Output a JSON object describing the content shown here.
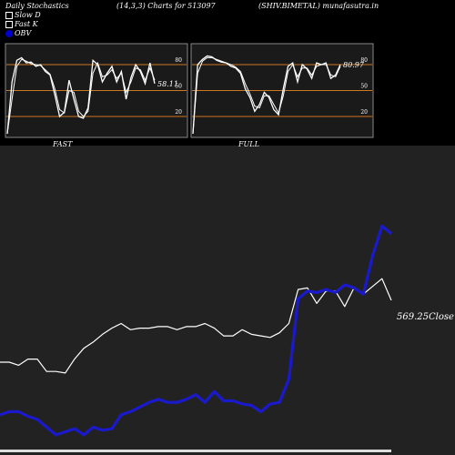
{
  "header": {
    "left": "Daily Stochastics",
    "middle": "(14,3,3) Charts for 513097",
    "right": "(SHIV.BIMETAL) munafasutra.in"
  },
  "legend": [
    {
      "label": "Slow  D",
      "color": "#ffffff"
    },
    {
      "label": "Fast K",
      "color": "#ffffff"
    },
    {
      "label": "OBV",
      "color": "#0000cc"
    }
  ],
  "colors": {
    "background": "#000000",
    "panel_bg": "#1a1a1a",
    "bottom_bg": "#222222",
    "grid": "#cc7722",
    "price": "#ffffff",
    "obv": "#1a1acc"
  },
  "chart_data": [
    {
      "type": "line",
      "title": "FAST",
      "yticks": [
        80,
        50,
        20
      ],
      "ylim": [
        0,
        100
      ],
      "last_value_label": "58.11",
      "series": [
        {
          "name": "Fast K",
          "values": [
            0,
            60,
            85,
            88,
            82,
            83,
            78,
            80,
            72,
            68,
            45,
            20,
            25,
            62,
            40,
            20,
            18,
            30,
            85,
            80,
            60,
            70,
            78,
            60,
            72,
            40,
            65,
            80,
            72,
            58,
            82,
            58
          ]
        },
        {
          "name": "Slow  D",
          "values": [
            0,
            40,
            78,
            86,
            84,
            81,
            80,
            79,
            74,
            69,
            52,
            28,
            24,
            50,
            48,
            26,
            20,
            26,
            70,
            82,
            66,
            68,
            74,
            64,
            70,
            48,
            60,
            76,
            74,
            62,
            76,
            62
          ]
        }
      ]
    },
    {
      "type": "line",
      "title": "FULL",
      "yticks": [
        80,
        50,
        20
      ],
      "ylim": [
        0,
        100
      ],
      "last_value_label": "80.97",
      "series": [
        {
          "name": "Fast K",
          "values": [
            0,
            80,
            86,
            90,
            89,
            85,
            83,
            82,
            78,
            76,
            70,
            52,
            42,
            26,
            34,
            48,
            42,
            28,
            22,
            52,
            78,
            82,
            60,
            80,
            75,
            64,
            82,
            80,
            82,
            64,
            68,
            80
          ]
        },
        {
          "name": "Slow  D",
          "values": [
            0,
            70,
            84,
            88,
            88,
            86,
            84,
            82,
            80,
            77,
            72,
            58,
            46,
            32,
            30,
            44,
            44,
            34,
            24,
            44,
            72,
            80,
            66,
            76,
            76,
            68,
            78,
            80,
            80,
            68,
            66,
            78
          ]
        }
      ]
    },
    {
      "type": "line",
      "last_value_label": "569.25",
      "series_label": "Close",
      "series": [
        {
          "name": "Close",
          "values": [
            6.0,
            6.0,
            5.8,
            6.2,
            6.2,
            5.4,
            5.4,
            5.3,
            6.2,
            6.9,
            7.3,
            7.8,
            8.2,
            8.5,
            8.1,
            8.2,
            8.2,
            8.3,
            8.3,
            8.1,
            8.3,
            8.3,
            8.5,
            8.2,
            7.7,
            7.7,
            8.1,
            7.8,
            7.7,
            7.6,
            7.9,
            8.5,
            10.7,
            10.8,
            9.8,
            10.6,
            10.6,
            9.6,
            10.8,
            10.4,
            10.9,
            11.4,
            10.0
          ]
        },
        {
          "name": "OBV",
          "values": [
            2.6,
            2.8,
            2.8,
            2.5,
            2.3,
            1.8,
            1.3,
            1.5,
            1.7,
            1.3,
            1.8,
            1.6,
            1.7,
            2.6,
            2.8,
            3.1,
            3.4,
            3.6,
            3.4,
            3.4,
            3.6,
            3.9,
            3.4,
            4.1,
            3.5,
            3.5,
            3.3,
            3.2,
            2.8,
            3.3,
            3.4,
            4.9,
            10.1,
            10.6,
            10.5,
            10.7,
            10.5,
            11.0,
            10.8,
            10.4,
            12.9,
            14.8,
            14.3
          ]
        }
      ]
    }
  ]
}
